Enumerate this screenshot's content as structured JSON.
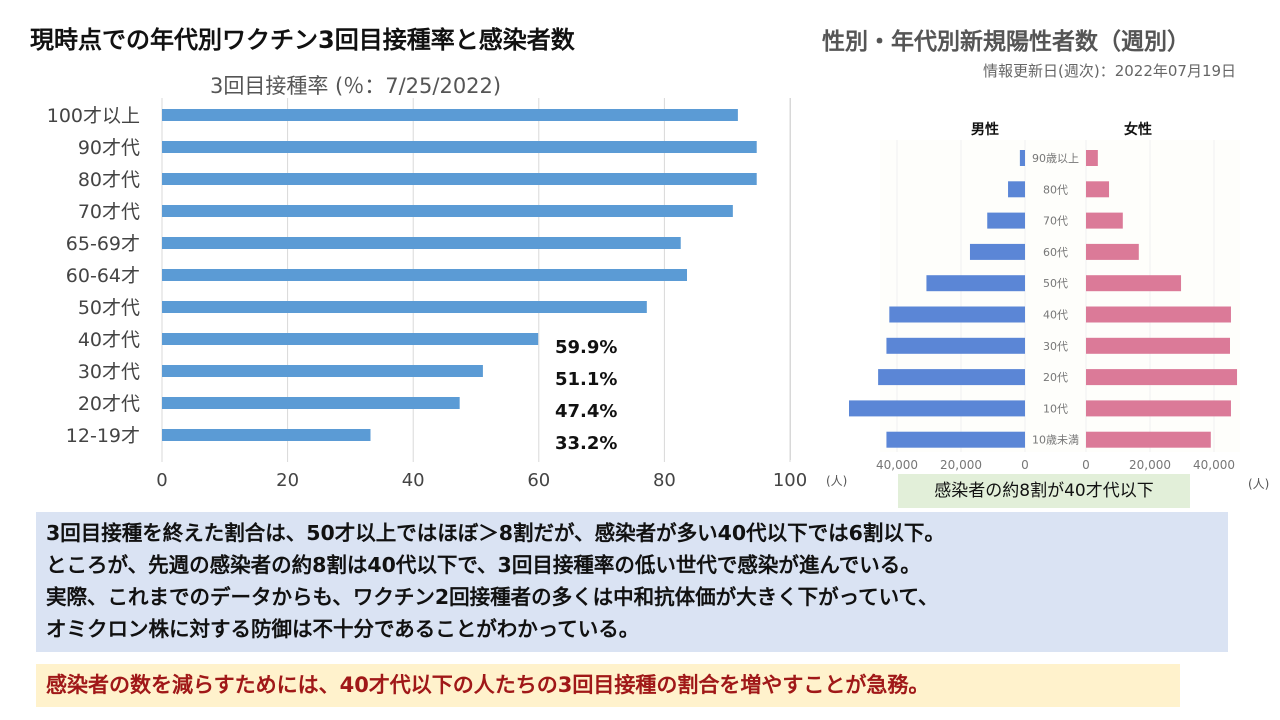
{
  "header": {
    "main_title": "現時点での年代別ワクチン3回目接種率と感染者数",
    "right_title": "性別・年代別新規陽性者数（週別）",
    "right_updated": "情報更新日(週次)：2022年07月19日"
  },
  "colors": {
    "vaccination_bar": "#5b9bd5",
    "male_bar": "#5b86d6",
    "female_bar": "#db7a98",
    "summary_box": "#dae3f3",
    "conclusion_box": "#fff2cc",
    "conclusion_text": "#a01818",
    "note_box": "#e2efd9"
  },
  "chart_data": [
    {
      "type": "bar",
      "orientation": "horizontal",
      "title": "3回目接種率 (％：7/25/2022)",
      "xlabel": "",
      "ylabel": "",
      "unit_label": "(人)",
      "xlim": [
        0,
        100
      ],
      "xticks": [
        "0",
        "20",
        "40",
        "60",
        "80",
        "100"
      ],
      "grid": true,
      "categories": [
        "100才以上",
        "90才代",
        "80才代",
        "70才代",
        "65-69才",
        "60-64才",
        "50才代",
        "40才代",
        "30才代",
        "20才代",
        "12-19才"
      ],
      "values": [
        91.7,
        94.7,
        94.7,
        90.9,
        82.6,
        83.6,
        77.2,
        59.9,
        51.1,
        47.4,
        33.2
      ],
      "data_labels": [
        null,
        null,
        null,
        null,
        null,
        null,
        null,
        "59.9%",
        "51.1%",
        "47.4%",
        "33.2%"
      ]
    },
    {
      "type": "bar",
      "orientation": "horizontal-butterfly",
      "title": "性別・年代別新規陽性者数（週別）",
      "unit_label": "(人)",
      "xlim": [
        0,
        60000
      ],
      "xticks": [
        "40,000",
        "20,000",
        "0"
      ],
      "xticks_right": [
        "0",
        "20,000",
        "40,000"
      ],
      "categories": [
        "90歳以上",
        "80代",
        "70代",
        "60代",
        "50代",
        "40代",
        "30代",
        "20代",
        "10代",
        "10歳未満"
      ],
      "series": [
        {
          "name": "男性",
          "values": [
            1600,
            5300,
            11800,
            17200,
            30800,
            42400,
            43300,
            45900,
            55000,
            43300
          ]
        },
        {
          "name": "女性",
          "values": [
            3700,
            7200,
            11500,
            16500,
            29700,
            45300,
            45000,
            47200,
            45300,
            39000
          ]
        }
      ],
      "annotation": "感染者の約8割が40才代以下"
    }
  ],
  "summary": {
    "lines": [
      "3回目接種を終えた割合は、50才以上ではほぼ＞8割だが、感染者が多い40代以下では6割以下。",
      "ところが、先週の感染者の約8割は40代以下で、3回目接種率の低い世代で感染が進んでいる。",
      "実際、これまでのデータからも、ワクチン2回接種者の多くは中和抗体価が大きく下がっていて、",
      "オミクロン株に対する防御は不十分であることがわかっている。"
    ]
  },
  "conclusion": "感染者の数を減らすためには、40才代以下の人たちの3回目接種の割合を増やすことが急務。"
}
